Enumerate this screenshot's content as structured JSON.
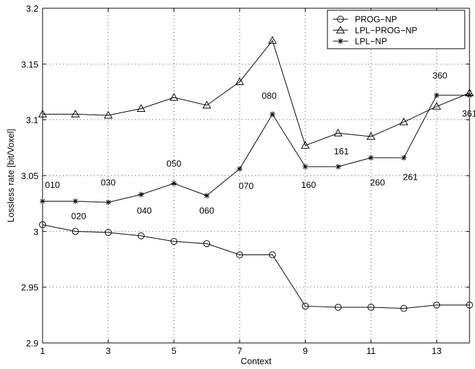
{
  "chart_data": {
    "type": "line",
    "title": "",
    "xlabel": "Context",
    "ylabel": "Lossless rate [bit/Voxel]",
    "xlim": [
      1,
      14
    ],
    "ylim": [
      2.9,
      3.2
    ],
    "xticks": [
      1,
      3,
      5,
      7,
      9,
      11,
      13
    ],
    "yticks": [
      2.9,
      2.95,
      3,
      3.05,
      3.1,
      3.15,
      3.2
    ],
    "xtick_labels": [
      "1",
      "3",
      "5",
      "7",
      "9",
      "11",
      "13"
    ],
    "ytick_labels": [
      "2.9",
      "2.95",
      "3",
      "3.05",
      "3.1",
      "3.15",
      "3.2"
    ],
    "grid": true,
    "legend_position": "top-right",
    "x": [
      1,
      2,
      3,
      4,
      5,
      6,
      7,
      8,
      9,
      10,
      11,
      12,
      13,
      14
    ],
    "series": [
      {
        "name": "PROG−NP",
        "marker": "circle",
        "values": [
          3.006,
          3.0,
          2.999,
          2.996,
          2.991,
          2.989,
          2.979,
          2.979,
          2.933,
          2.932,
          2.932,
          2.931,
          2.934,
          2.934
        ]
      },
      {
        "name": "LPL−PROG−NP",
        "marker": "triangle",
        "values": [
          3.105,
          3.105,
          3.104,
          3.11,
          3.12,
          3.113,
          3.134,
          3.171,
          3.077,
          3.088,
          3.085,
          3.098,
          3.112,
          3.124
        ]
      },
      {
        "name": "LPL−NP",
        "marker": "star",
        "values": [
          3.027,
          3.027,
          3.026,
          3.033,
          3.043,
          3.032,
          3.056,
          3.105,
          3.058,
          3.058,
          3.066,
          3.066,
          3.122,
          3.122
        ]
      }
    ],
    "annotations": [
      {
        "text": "010",
        "x": 1.3,
        "y": 3.039
      },
      {
        "text": "020",
        "x": 2.1,
        "y": 3.011
      },
      {
        "text": "030",
        "x": 3.0,
        "y": 3.041
      },
      {
        "text": "040",
        "x": 4.1,
        "y": 3.016
      },
      {
        "text": "050",
        "x": 5.0,
        "y": 3.058
      },
      {
        "text": "060",
        "x": 6.0,
        "y": 3.016
      },
      {
        "text": "070",
        "x": 7.2,
        "y": 3.038
      },
      {
        "text": "080",
        "x": 7.9,
        "y": 3.119
      },
      {
        "text": "160",
        "x": 9.1,
        "y": 3.039
      },
      {
        "text": "161",
        "x": 10.1,
        "y": 3.069
      },
      {
        "text": "260",
        "x": 11.2,
        "y": 3.041
      },
      {
        "text": "261",
        "x": 12.2,
        "y": 3.046
      },
      {
        "text": "360",
        "x": 13.1,
        "y": 3.137
      },
      {
        "text": "361",
        "x": 14.0,
        "y": 3.103
      }
    ]
  }
}
